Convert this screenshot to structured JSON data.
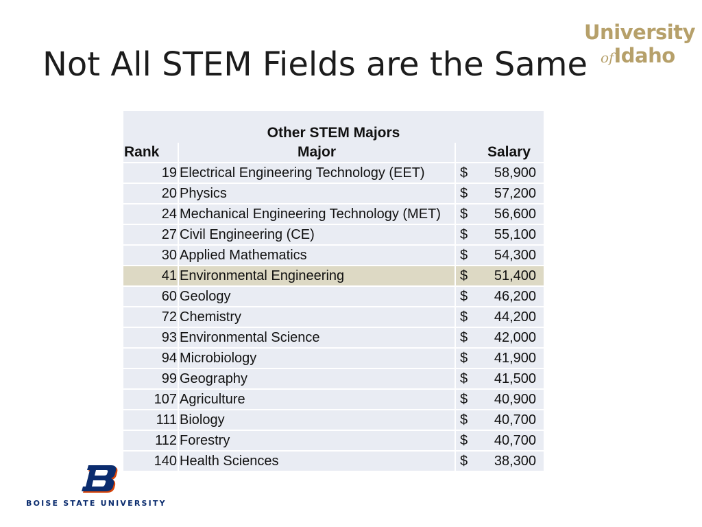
{
  "slide": {
    "title": "Not All STEM Fields are the Same"
  },
  "logos": {
    "university_line1": "University",
    "university_of": "of",
    "university_idaho": "Idaho",
    "boise_state": "BOISE STATE UNIVERSITY"
  },
  "table": {
    "caption": "Other STEM Majors",
    "headers": {
      "rank": "Rank",
      "major": "Major",
      "salary": "Salary"
    },
    "currency_symbol": "$",
    "rows": [
      {
        "rank": "19",
        "major": "Electrical Engineering Technology (EET)",
        "salary": "58,900"
      },
      {
        "rank": "20",
        "major": "Physics",
        "salary": "57,200"
      },
      {
        "rank": "24",
        "major": "Mechanical Engineering Technology (MET)",
        "salary": "56,600"
      },
      {
        "rank": "27",
        "major": "Civil Engineering (CE)",
        "salary": "55,100"
      },
      {
        "rank": "30",
        "major": "Applied Mathematics",
        "salary": "54,300"
      },
      {
        "rank": "41",
        "major": "Environmental Engineering",
        "salary": "51,400",
        "highlighted": true
      },
      {
        "rank": "60",
        "major": "Geology",
        "salary": "46,200"
      },
      {
        "rank": "72",
        "major": "Chemistry",
        "salary": "44,200"
      },
      {
        "rank": "93",
        "major": "Environmental Science",
        "salary": "42,000"
      },
      {
        "rank": "94",
        "major": "Microbiology",
        "salary": "41,900"
      },
      {
        "rank": "99",
        "major": "Geography",
        "salary": "41,500"
      },
      {
        "rank": "107",
        "major": "Agriculture",
        "salary": "40,900"
      },
      {
        "rank": "111",
        "major": "Biology",
        "salary": "40,700"
      },
      {
        "rank": "112",
        "major": "Forestry",
        "salary": "40,700"
      },
      {
        "rank": "140",
        "major": "Health Sciences",
        "salary": "38,300"
      }
    ]
  },
  "colors": {
    "row_background": "#e9ecf3",
    "highlight_background": "#ddd9c4",
    "idaho_gold": "#b6a06a",
    "boise_blue": "#0b2c6e",
    "boise_orange": "#d64309"
  }
}
